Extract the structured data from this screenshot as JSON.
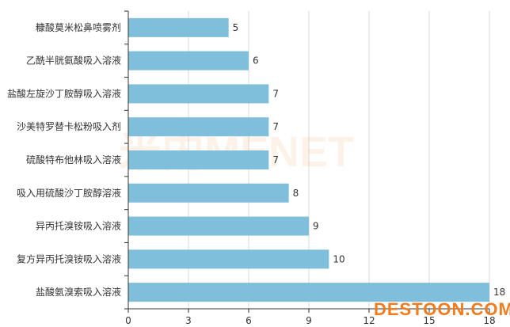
{
  "chart_data": {
    "type": "bar",
    "orientation": "horizontal",
    "categories": [
      "糠酸莫米松鼻喷雾剂",
      "乙酰半胱氨酸吸入溶液",
      "盐酸左旋沙丁胺醇吸入溶液",
      "沙美特罗替卡松粉吸入剂",
      "硫酸特布他林吸入溶液",
      "吸入用硫酸沙丁胺醇溶液",
      "异丙托溴铵吸入溶液",
      "复方异丙托溴铵吸入溶液",
      "盐酸氨溴索吸入溶液"
    ],
    "values": [
      5,
      6,
      7,
      7,
      7,
      8,
      9,
      10,
      18
    ],
    "xlim": [
      0,
      18
    ],
    "xticks": [
      "0",
      "3",
      "6",
      "9",
      "12",
      "15",
      "18"
    ],
    "grid": true,
    "bar_color": "#7fbfdc",
    "title": "",
    "xlabel": "",
    "ylabel": ""
  },
  "watermarks": {
    "center": "米内MENET",
    "corner": "DESTOON.COM"
  }
}
